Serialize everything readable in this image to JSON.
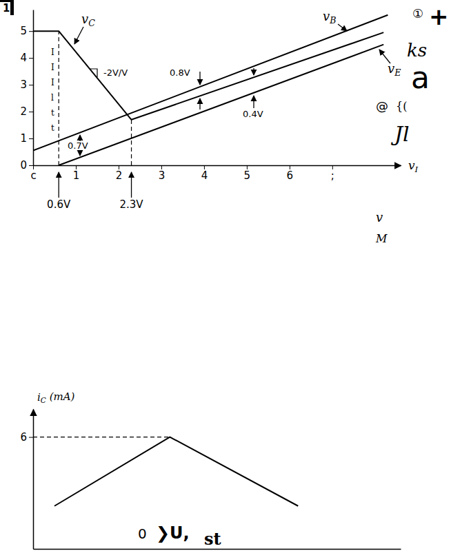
{
  "chart_data": [
    {
      "type": "line",
      "label": "1",
      "x_label": "vI",
      "xlim": [
        0,
        8.6
      ],
      "xticks": [
        {
          "value": 0,
          "label": "c"
        },
        1,
        2,
        3,
        4,
        5,
        6,
        {
          "value": 7,
          "label": ";"
        }
      ],
      "ylim": [
        0,
        5.8
      ],
      "yticks": [
        0,
        1,
        2,
        3,
        4,
        5
      ],
      "grid": false,
      "series": [
        {
          "name": "vB",
          "color": "#000000",
          "x": [
            0,
            8.3
          ],
          "values": [
            0.55,
            5.6
          ]
        },
        {
          "name": "vC",
          "color": "#000000",
          "x": [
            0,
            0.6,
            2.3,
            8.2
          ],
          "values": [
            5,
            5,
            1.7,
            4.95
          ]
        },
        {
          "name": "vE",
          "color": "#000000",
          "x": [
            0.6,
            8.2
          ],
          "values": [
            0,
            4.5
          ]
        }
      ],
      "reference_lines": [
        {
          "x": 0.6,
          "y": 5,
          "label": "0.6V"
        },
        {
          "x": 2.3,
          "y": 1.7,
          "label": "2.3V"
        }
      ],
      "annotations": [
        "0.7V",
        "0.8V",
        "0.4V",
        "-2V/V",
        "IIIltt"
      ],
      "side_texts": [
        "①",
        "+",
        "ks",
        "a",
        "@",
        "{(",
        "Jl",
        "v",
        "M"
      ]
    },
    {
      "type": "line",
      "y_label": "iC (mA)",
      "xlim": [
        0,
        8.6
      ],
      "ylim": [
        0,
        7.5
      ],
      "yticks": [
        6
      ],
      "tick_labels": "y",
      "grid": false,
      "series": [
        {
          "color": "#000000",
          "x": [
            0.5,
            3.2,
            6.2
          ],
          "values": [
            2.3,
            6,
            2.3
          ]
        }
      ],
      "reference_lines": [
        {
          "x": 3.2,
          "y": 6
        }
      ],
      "annotations": [
        "0",
        "❯U,",
        "st"
      ]
    }
  ]
}
